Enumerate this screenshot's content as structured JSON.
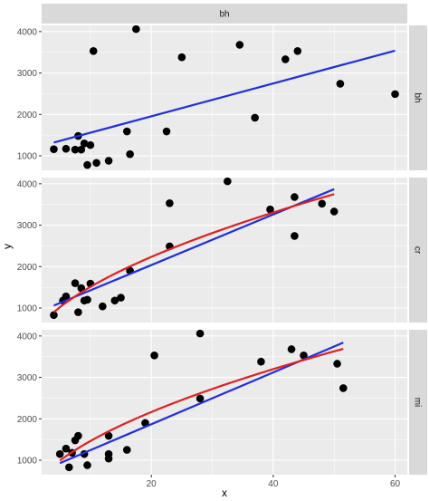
{
  "colors": {
    "panel_background": "#ebebeb",
    "grid_major": "#ffffff",
    "strip_background": "#d9d9d9",
    "point": "#000000",
    "line_linear": "#1f2fe0",
    "line_power": "#e02020"
  },
  "chart_data": {
    "type": "scatter",
    "facet_layout": "rows, strip labels on top and right",
    "xlabel": "x",
    "ylabel": "y",
    "xlim": [
      2,
      62
    ],
    "xticks": [
      20,
      40,
      60
    ],
    "ylim": [
      650,
      4150
    ],
    "yticks": [
      1000,
      2000,
      3000,
      4000
    ],
    "grid": true,
    "top_strip": "bh",
    "panels": [
      {
        "label": "bh",
        "points": [
          [
            4,
            1160
          ],
          [
            6,
            1170
          ],
          [
            7.5,
            1150
          ],
          [
            8,
            1480
          ],
          [
            8.5,
            1150
          ],
          [
            9,
            1300
          ],
          [
            9.5,
            780
          ],
          [
            10,
            1260
          ],
          [
            10.5,
            3530
          ],
          [
            11,
            830
          ],
          [
            13,
            880
          ],
          [
            16,
            1590
          ],
          [
            16.5,
            1040
          ],
          [
            17.5,
            4060
          ],
          [
            22.5,
            1590
          ],
          [
            25,
            3380
          ],
          [
            34.5,
            3680
          ],
          [
            37,
            1920
          ],
          [
            42,
            3330
          ],
          [
            44,
            3530
          ],
          [
            51,
            2740
          ],
          [
            60,
            2490
          ]
        ],
        "fits": [
          {
            "kind": "linear",
            "x": [
              4,
              60
            ],
            "y": [
              1320,
              3540
            ]
          }
        ]
      },
      {
        "label": "cr",
        "points": [
          [
            4,
            830
          ],
          [
            5.5,
            1180
          ],
          [
            6,
            1280
          ],
          [
            7.5,
            1600
          ],
          [
            8,
            900
          ],
          [
            8.5,
            1480
          ],
          [
            9,
            1180
          ],
          [
            9.5,
            1200
          ],
          [
            10,
            1590
          ],
          [
            12,
            1040
          ],
          [
            14,
            1180
          ],
          [
            15,
            1250
          ],
          [
            16.5,
            1900
          ],
          [
            23,
            3530
          ],
          [
            23,
            2490
          ],
          [
            32.5,
            4060
          ],
          [
            39.5,
            3380
          ],
          [
            43.5,
            3680
          ],
          [
            43.5,
            2740
          ],
          [
            48,
            3520
          ],
          [
            50,
            3330
          ]
        ],
        "fits": [
          {
            "kind": "linear",
            "x": [
              4,
              50
            ],
            "y": [
              1060,
              3870
            ]
          },
          {
            "kind": "power",
            "x": [
              4,
              50
            ],
            "y": [
              900,
              3750
            ]
          }
        ]
      },
      {
        "label": "mi",
        "points": [
          [
            5,
            1150
          ],
          [
            6,
            1280
          ],
          [
            6.5,
            830
          ],
          [
            7,
            1180
          ],
          [
            7.5,
            1480
          ],
          [
            8,
            1590
          ],
          [
            9,
            1150
          ],
          [
            9.5,
            880
          ],
          [
            13,
            1150
          ],
          [
            13,
            1040
          ],
          [
            13,
            1590
          ],
          [
            16,
            1250
          ],
          [
            19,
            1900
          ],
          [
            20.5,
            3530
          ],
          [
            28,
            4060
          ],
          [
            28,
            2490
          ],
          [
            38,
            3380
          ],
          [
            43,
            3680
          ],
          [
            45,
            3530
          ],
          [
            50.5,
            3330
          ],
          [
            51.5,
            2740
          ]
        ],
        "fits": [
          {
            "kind": "linear",
            "x": [
              5,
              51.5
            ],
            "y": [
              930,
              3840
            ]
          },
          {
            "kind": "power",
            "x": [
              5,
              51.5
            ],
            "y": [
              990,
              3690
            ]
          }
        ]
      }
    ]
  }
}
